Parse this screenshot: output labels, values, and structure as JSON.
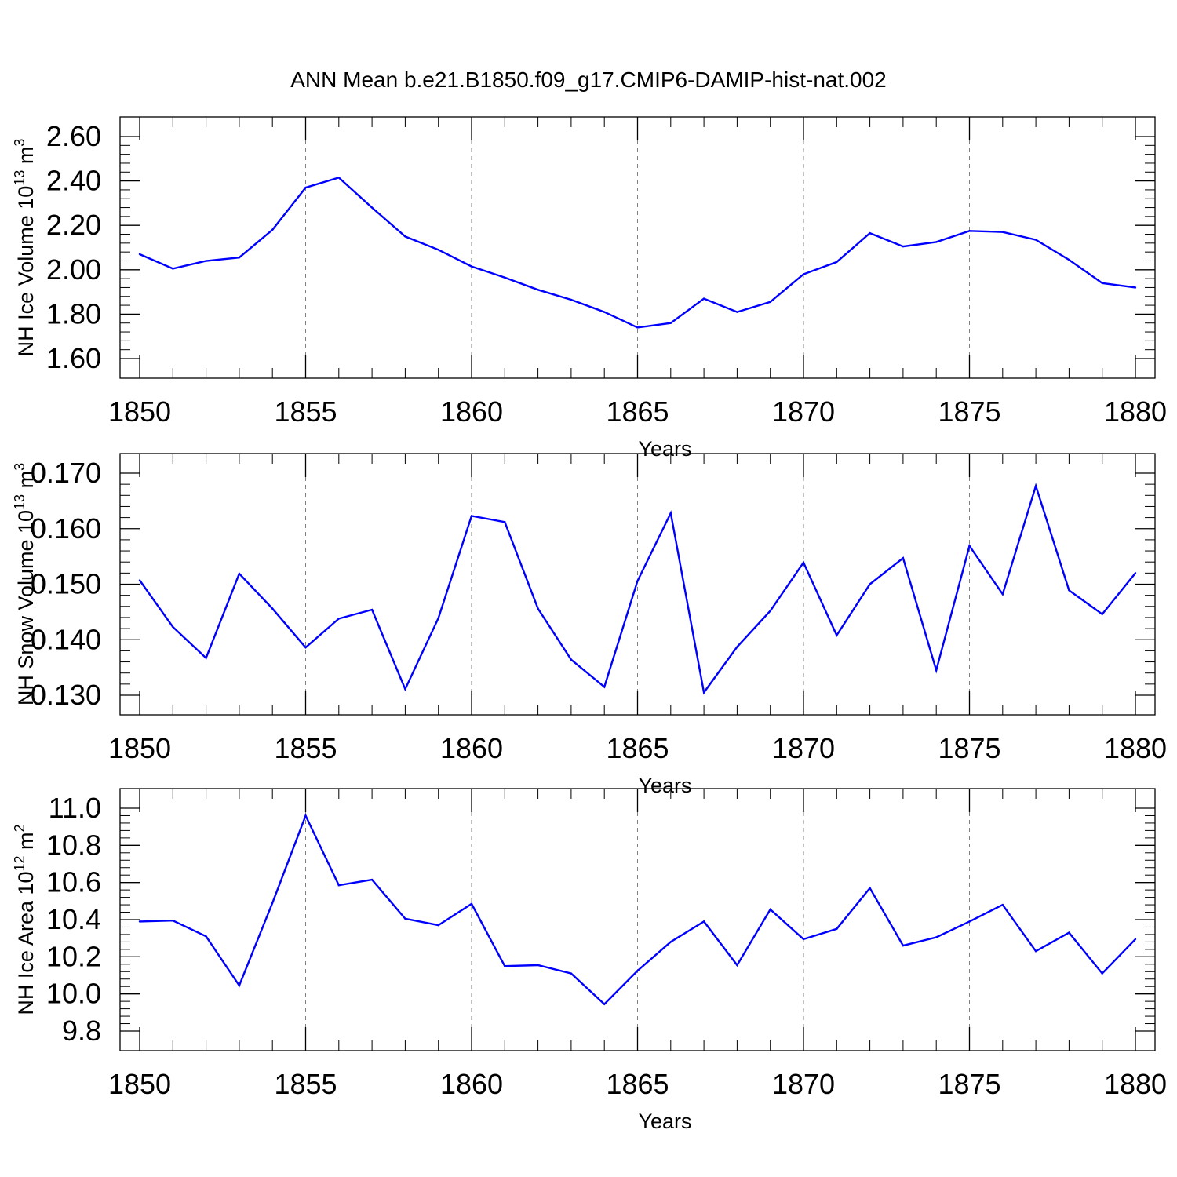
{
  "title": "ANN Mean b.e21.B1850.f09_g17.CMIP6-DAMIP-hist-nat.002",
  "colors": {
    "series": "#0000ff",
    "axis": "#000000",
    "grid": "#808080"
  },
  "chart_data": [
    {
      "type": "line",
      "xlabel": "Years",
      "ylabel": {
        "text": "NH Ice Volume 10",
        "sup1": "13",
        "mid": " m",
        "sup2": "3"
      },
      "xlim": [
        1850,
        1880
      ],
      "ylim": [
        1.6,
        2.6
      ],
      "xticks": [
        1850,
        1855,
        1860,
        1865,
        1870,
        1875,
        1880
      ],
      "xtick_labels": [
        "1850",
        "1855",
        "1860",
        "1865",
        "1870",
        "1875",
        "1880"
      ],
      "yticks": [
        1.6,
        1.8,
        2.0,
        2.2,
        2.4,
        2.6
      ],
      "ytick_labels": [
        "1.60",
        "1.80",
        "2.00",
        "2.20",
        "2.40",
        "2.60"
      ],
      "grid": "vertical dashed at major x ticks",
      "x": [
        1850,
        1851,
        1852,
        1853,
        1854,
        1855,
        1856,
        1857,
        1858,
        1859,
        1860,
        1861,
        1862,
        1863,
        1864,
        1865,
        1866,
        1867,
        1868,
        1869,
        1870,
        1871,
        1872,
        1873,
        1874,
        1875,
        1876,
        1877,
        1878,
        1879,
        1880
      ],
      "series": [
        {
          "values": [
            2.07,
            2.005,
            2.04,
            2.055,
            2.18,
            2.37,
            2.415,
            2.28,
            2.15,
            2.09,
            2.015,
            1.965,
            1.91,
            1.865,
            1.81,
            1.74,
            1.76,
            1.87,
            1.81,
            1.855,
            1.98,
            2.035,
            2.165,
            2.105,
            2.125,
            2.175,
            2.17,
            2.135,
            2.045,
            1.94,
            1.92
          ]
        }
      ]
    },
    {
      "type": "line",
      "xlabel": "Years",
      "ylabel": {
        "text": "NH Snow Volume 10",
        "sup1": "13",
        "mid": " m",
        "sup2": "3"
      },
      "xlim": [
        1850,
        1880
      ],
      "ylim": [
        0.13,
        0.17
      ],
      "xticks": [
        1850,
        1855,
        1860,
        1865,
        1870,
        1875,
        1880
      ],
      "xtick_labels": [
        "1850",
        "1855",
        "1860",
        "1865",
        "1870",
        "1875",
        "1880"
      ],
      "yticks": [
        0.13,
        0.14,
        0.15,
        0.16,
        0.17
      ],
      "ytick_labels": [
        "0.130",
        "0.140",
        "0.150",
        "0.160",
        "0.170"
      ],
      "grid": "vertical dashed at major x ticks",
      "x": [
        1850,
        1851,
        1852,
        1853,
        1854,
        1855,
        1856,
        1857,
        1858,
        1859,
        1860,
        1861,
        1862,
        1863,
        1864,
        1865,
        1866,
        1867,
        1868,
        1869,
        1870,
        1871,
        1872,
        1873,
        1874,
        1875,
        1876,
        1877,
        1878,
        1879,
        1880
      ],
      "series": [
        {
          "values": [
            0.1507,
            0.1423,
            0.1367,
            0.1519,
            0.1456,
            0.1386,
            0.1438,
            0.1454,
            0.1311,
            0.1439,
            0.1623,
            0.1612,
            0.1456,
            0.1364,
            0.1315,
            0.1506,
            0.1628,
            0.1305,
            0.1387,
            0.1452,
            0.1539,
            0.1408,
            0.15,
            0.1547,
            0.1345,
            0.1569,
            0.1482,
            0.1677,
            0.1489,
            0.1446,
            0.152
          ]
        }
      ]
    },
    {
      "type": "line",
      "xlabel": "Years",
      "ylabel": {
        "text": "NH Ice Area 10",
        "sup1": "12",
        "mid": " m",
        "sup2": "2"
      },
      "xlim": [
        1850,
        1880
      ],
      "ylim": [
        9.8,
        11.0
      ],
      "xticks": [
        1850,
        1855,
        1860,
        1865,
        1870,
        1875,
        1880
      ],
      "xtick_labels": [
        "1850",
        "1855",
        "1860",
        "1865",
        "1870",
        "1875",
        "1880"
      ],
      "yticks": [
        9.8,
        10.0,
        10.2,
        10.4,
        10.6,
        10.8,
        11.0
      ],
      "ytick_labels": [
        "9.8",
        "10.0",
        "10.2",
        "10.4",
        "10.6",
        "10.8",
        "11.0"
      ],
      "grid": "vertical dashed at major x ticks",
      "x": [
        1850,
        1851,
        1852,
        1853,
        1854,
        1855,
        1856,
        1857,
        1858,
        1859,
        1860,
        1861,
        1862,
        1863,
        1864,
        1865,
        1866,
        1867,
        1868,
        1869,
        1870,
        1871,
        1872,
        1873,
        1874,
        1875,
        1876,
        1877,
        1878,
        1879,
        1880
      ],
      "series": [
        {
          "values": [
            10.39,
            10.395,
            10.31,
            10.045,
            10.49,
            10.96,
            10.585,
            10.615,
            10.405,
            10.37,
            10.485,
            10.15,
            10.155,
            10.11,
            9.945,
            10.125,
            10.28,
            10.39,
            10.155,
            10.455,
            10.295,
            10.35,
            10.57,
            10.26,
            10.305,
            10.39,
            10.48,
            10.23,
            10.33,
            10.11,
            10.295
          ]
        }
      ]
    }
  ]
}
